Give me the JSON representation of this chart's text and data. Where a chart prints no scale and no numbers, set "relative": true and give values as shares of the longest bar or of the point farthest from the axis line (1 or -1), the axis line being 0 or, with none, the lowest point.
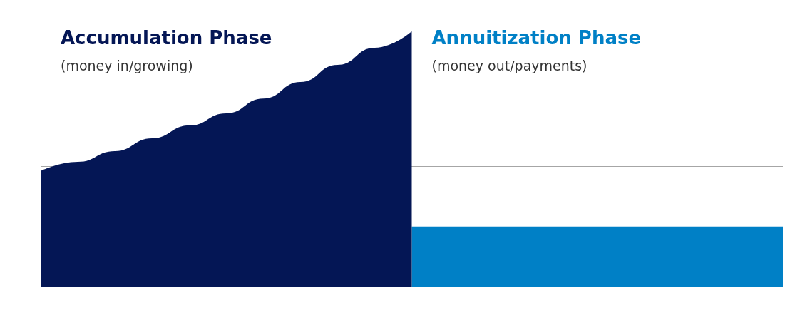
{
  "chart_data": {
    "type": "area",
    "relative": true,
    "categories": [
      null,
      null,
      null,
      null,
      null,
      null,
      null,
      null,
      null,
      null,
      null,
      null,
      null,
      null,
      null,
      null,
      null,
      null,
      null,
      null,
      null
    ],
    "series": [
      {
        "name": "Accumulation Phase",
        "color": "#041655",
        "values": [
          0.453,
          0.489,
          0.531,
          0.581,
          0.631,
          0.679,
          0.737,
          0.802,
          0.869,
          0.936,
          1.0,
          null,
          null,
          null,
          null,
          null,
          null,
          null,
          null,
          null,
          null
        ]
      },
      {
        "name": "Annuitization Phase",
        "color": "#0080c6",
        "values": [
          null,
          null,
          null,
          null,
          null,
          null,
          null,
          null,
          null,
          null,
          0.235,
          0.235,
          0.235,
          0.235,
          0.235,
          0.235,
          0.235,
          0.235,
          0.235,
          0.235,
          0.235
        ]
      }
    ],
    "annotations": [
      "(money in/growing)",
      "(money out/payments)"
    ],
    "ref_lines": [
      {
        "axis": "y",
        "value": 0.696,
        "color": "#a6a6a6"
      },
      {
        "axis": "y",
        "value": 0.469,
        "color": "#a6a6a6"
      }
    ],
    "legend": false
  }
}
